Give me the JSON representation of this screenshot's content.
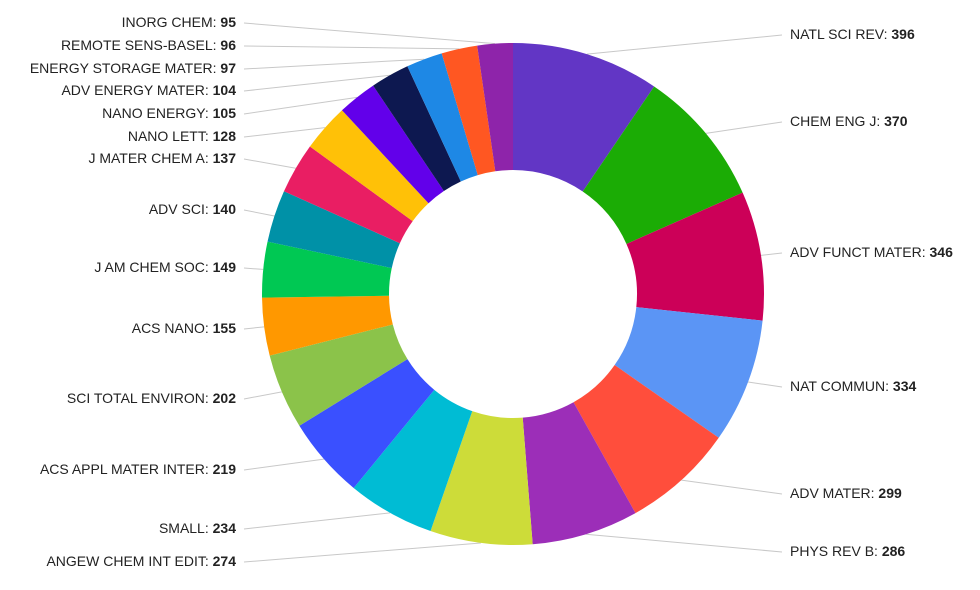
{
  "chart_data": {
    "type": "pie",
    "donut": true,
    "legend": "none",
    "slices": [
      {
        "label": "NATL SCI REV",
        "value": 396,
        "color": "#6236c5"
      },
      {
        "label": "CHEM ENG J",
        "value": 370,
        "color": "#1bac05"
      },
      {
        "label": "ADV FUNCT MATER",
        "value": 346,
        "color": "#cc0058"
      },
      {
        "label": "NAT COMMUN",
        "value": 334,
        "color": "#5b95f5"
      },
      {
        "label": "ADV MATER",
        "value": 299,
        "color": "#ff4e3c"
      },
      {
        "label": "PHYS REV B",
        "value": 286,
        "color": "#9c2eb8"
      },
      {
        "label": "ANGEW CHEM INT EDIT",
        "value": 274,
        "color": "#cddc39"
      },
      {
        "label": "SMALL",
        "value": 234,
        "color": "#00bcd4"
      },
      {
        "label": "ACS APPL MATER INTER",
        "value": 219,
        "color": "#3a50ff"
      },
      {
        "label": "SCI TOTAL ENVIRON",
        "value": 202,
        "color": "#8bc34a"
      },
      {
        "label": "ACS NANO",
        "value": 155,
        "color": "#ff9800"
      },
      {
        "label": "J AM CHEM SOC",
        "value": 149,
        "color": "#00c853"
      },
      {
        "label": "ADV SCI",
        "value": 140,
        "color": "#0091a7"
      },
      {
        "label": "J MATER CHEM A",
        "value": 137,
        "color": "#e91e63"
      },
      {
        "label": "NANO LETT",
        "value": 128,
        "color": "#ffc107"
      },
      {
        "label": "NANO ENERGY",
        "value": 105,
        "color": "#6200ea"
      },
      {
        "label": "ADV ENERGY MATER",
        "value": 104,
        "color": "#0d1850"
      },
      {
        "label": "ENERGY STORAGE MATER",
        "value": 97,
        "color": "#1e88e5"
      },
      {
        "label": "REMOTE SENS-BASEL",
        "value": 96,
        "color": "#ff5722"
      },
      {
        "label": "INORG CHEM",
        "value": 95,
        "color": "#8e24aa"
      }
    ]
  }
}
